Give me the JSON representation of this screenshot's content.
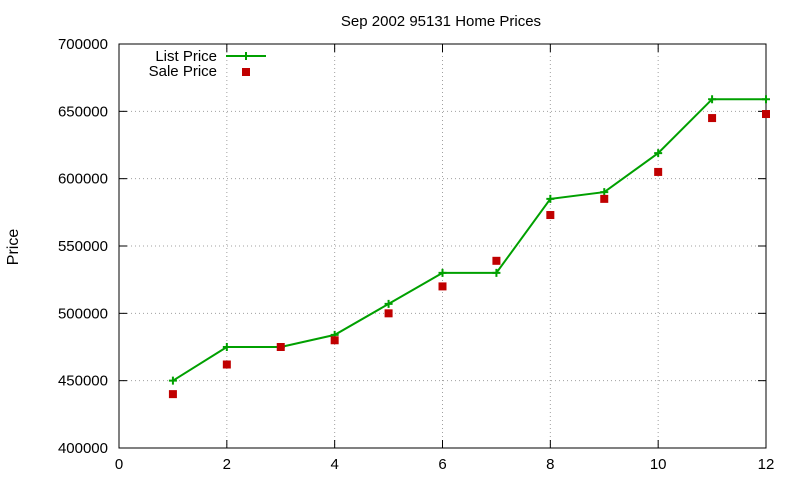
{
  "chart_data": {
    "type": "line",
    "title": "Sep 2002 95131 Home Prices",
    "xlabel": "",
    "ylabel": "Price",
    "xlim": [
      0,
      12
    ],
    "ylim": [
      400000,
      700000
    ],
    "xticks": [
      0,
      2,
      4,
      6,
      8,
      10,
      12
    ],
    "xtick_labels": [
      "0",
      "2",
      "4",
      "6",
      "8",
      "10",
      "12"
    ],
    "yticks": [
      400000,
      450000,
      500000,
      550000,
      600000,
      650000,
      700000
    ],
    "ytick_labels": [
      "400000",
      "450000",
      "500000",
      "550000",
      "600000",
      "650000",
      "700000"
    ],
    "grid": true,
    "legend_position": "top-left",
    "series": [
      {
        "name": "List Price",
        "style": "line-with-plus-markers",
        "color": "#00a000",
        "x": [
          1,
          2,
          3,
          4,
          5,
          6,
          7,
          8,
          9,
          10,
          11,
          12
        ],
        "y": [
          450000,
          475000,
          475000,
          484000,
          507000,
          530000,
          530000,
          585000,
          590000,
          619000,
          659000,
          659000
        ]
      },
      {
        "name": "Sale Price",
        "style": "square-markers",
        "color": "#c00000",
        "x": [
          1,
          2,
          3,
          4,
          5,
          6,
          7,
          8,
          9,
          10,
          11,
          12
        ],
        "y": [
          440000,
          462000,
          475000,
          480000,
          500000,
          520000,
          539000,
          573000,
          585000,
          605000,
          645000,
          648000
        ]
      }
    ]
  }
}
